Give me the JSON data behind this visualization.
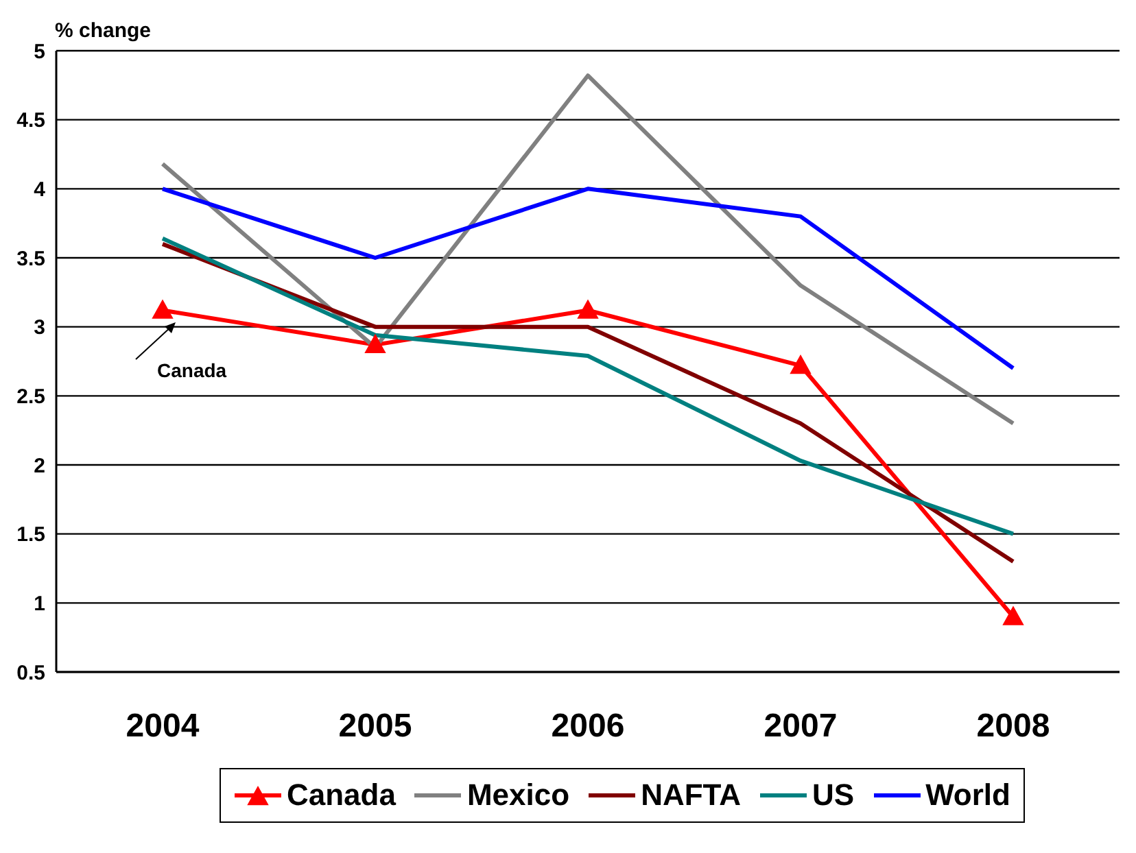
{
  "chart_data": {
    "type": "line",
    "ylabel": "% change",
    "categories": [
      "2004",
      "2005",
      "2006",
      "2007",
      "2008"
    ],
    "series": [
      {
        "name": "Canada",
        "color": "#ff0000",
        "marker": "triangle",
        "values": [
          3.12,
          2.87,
          3.12,
          2.72,
          0.9
        ]
      },
      {
        "name": "Mexico",
        "color": "#808080",
        "values": [
          4.18,
          2.85,
          4.82,
          3.3,
          2.3
        ]
      },
      {
        "name": "NAFTA",
        "color": "#800000",
        "values": [
          3.6,
          3.0,
          3.0,
          2.3,
          1.3
        ]
      },
      {
        "name": "US",
        "color": "#008080",
        "values": [
          3.64,
          2.94,
          2.79,
          2.03,
          1.5
        ]
      },
      {
        "name": "World",
        "color": "#0000ff",
        "values": [
          4.0,
          3.5,
          4.0,
          3.8,
          2.7
        ]
      }
    ],
    "ylim": [
      0.5,
      5
    ],
    "yticks": [
      0.5,
      1,
      1.5,
      2,
      2.5,
      3,
      3.5,
      4,
      4.5,
      5
    ],
    "grid": "y",
    "legend": "bottom",
    "marker": "none",
    "annotations": [
      {
        "text": "Canada",
        "x": "2004",
        "y": 3.12
      }
    ]
  }
}
